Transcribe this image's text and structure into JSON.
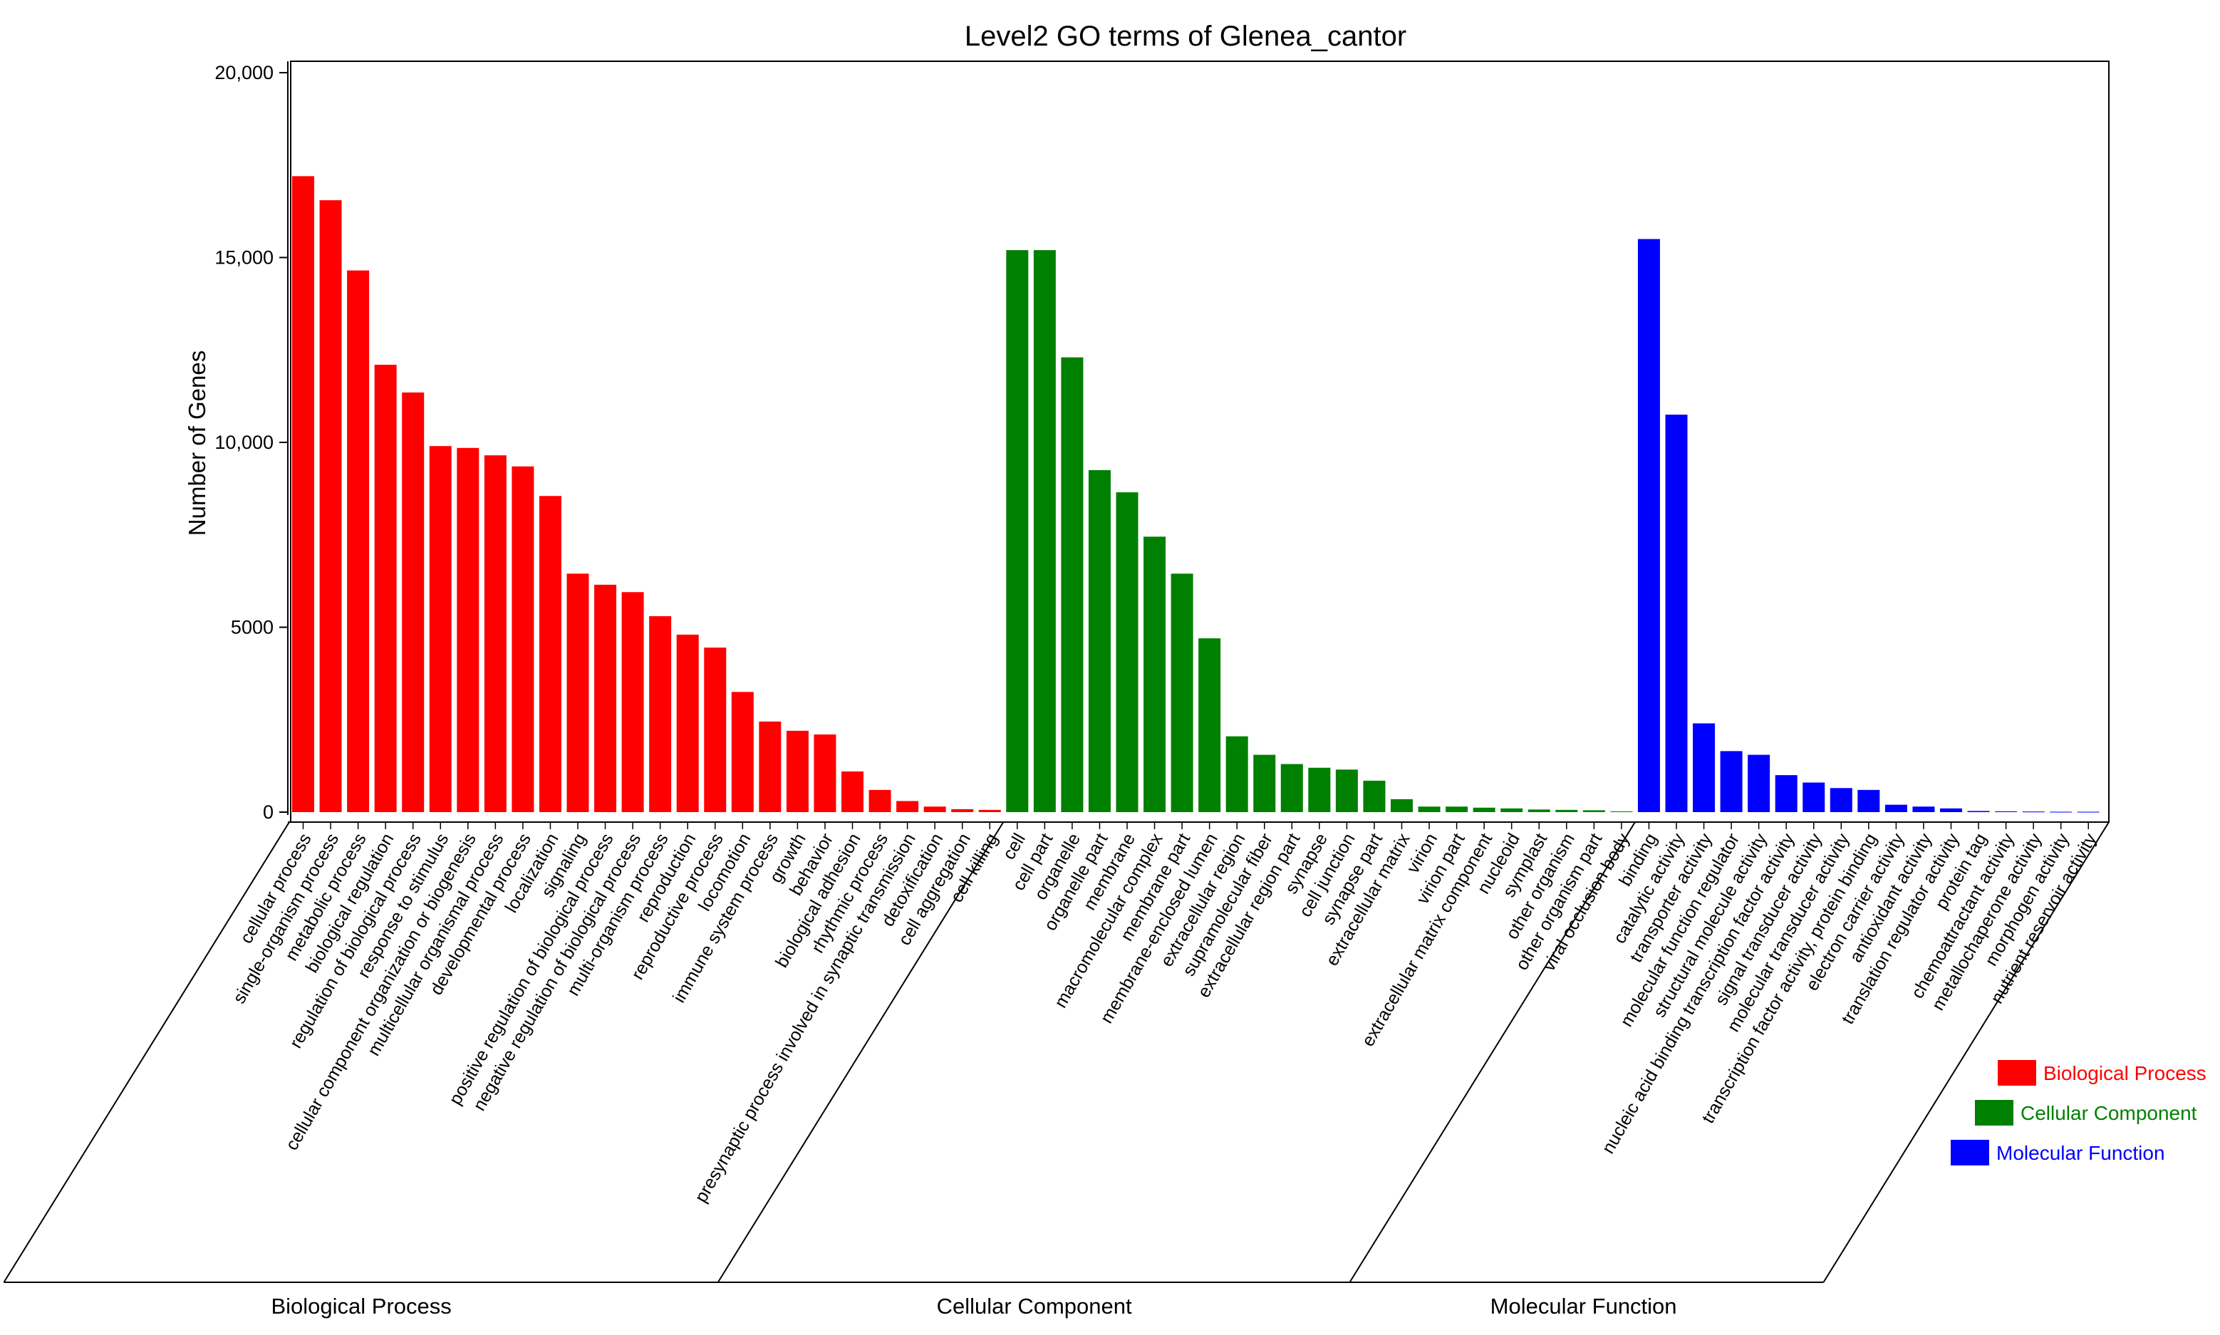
{
  "chart_data": {
    "type": "bar",
    "title": "Level2 GO terms of Glenea_cantor",
    "ylabel": "Number of Genes",
    "xlabel": "",
    "ylim": [
      0,
      20000
    ],
    "yticks": [
      0,
      5000,
      10000,
      15000,
      20000
    ],
    "ytick_labels": [
      "0",
      "5000",
      "10,000",
      "15,000",
      "20,000"
    ],
    "grid": false,
    "legend_position": "right",
    "groups": [
      {
        "name": "Biological Process",
        "color": "#ff0000",
        "categories": [
          "cellular process",
          "single-organism process",
          "metabolic process",
          "biological regulation",
          "regulation of biological process",
          "response to stimulus",
          "cellular component organization or biogenesis",
          "multicellular organismal process",
          "developmental process",
          "localization",
          "signaling",
          "positive regulation of biological process",
          "negative regulation of biological process",
          "multi-organism process",
          "reproduction",
          "reproductive process",
          "locomotion",
          "immune system process",
          "growth",
          "behavior",
          "biological adhesion",
          "rhythmic process",
          "presynaptic process involved in synaptic transmission",
          "detoxification",
          "cell aggregation",
          "cell killing"
        ],
        "values": [
          17200,
          16550,
          14650,
          12100,
          11350,
          9900,
          9850,
          9650,
          9350,
          8550,
          6450,
          6150,
          5950,
          5300,
          4800,
          4450,
          3250,
          2450,
          2200,
          2100,
          1100,
          600,
          300,
          150,
          80,
          60
        ]
      },
      {
        "name": "Cellular Component",
        "color": "#008000",
        "categories": [
          "cell",
          "cell part",
          "organelle",
          "organelle part",
          "membrane",
          "macromolecular complex",
          "membrane part",
          "membrane-enclosed lumen",
          "extracellular region",
          "supramolecular fiber",
          "extracellular region part",
          "synapse",
          "cell junction",
          "synapse part",
          "extracellular matrix",
          "virion",
          "virion part",
          "extracellular matrix component",
          "nucleoid",
          "symplast",
          "other organism",
          "other organism part",
          "viral occlusion body"
        ],
        "values": [
          15200,
          15200,
          12300,
          9250,
          8650,
          7450,
          6450,
          4700,
          2050,
          1550,
          1300,
          1200,
          1150,
          850,
          350,
          150,
          150,
          120,
          100,
          70,
          60,
          50,
          20
        ]
      },
      {
        "name": "Molecular Function",
        "color": "#0000ff",
        "categories": [
          "binding",
          "catalytic activity",
          "transporter activity",
          "molecular function regulator",
          "structural molecule activity",
          "nucleic acid binding transcription factor activity",
          "signal transducer activity",
          "molecular transducer activity",
          "transcription factor activity, protein binding",
          "electron carrier activity",
          "antioxidant activity",
          "translation regulator activity",
          "protein tag",
          "chemoattractant activity",
          "metallochaperone activity",
          "morphogen activity",
          "nutrient reservoir activity"
        ],
        "values": [
          15500,
          10750,
          2400,
          1650,
          1550,
          1000,
          800,
          650,
          600,
          200,
          150,
          100,
          30,
          20,
          15,
          10,
          10
        ]
      }
    ],
    "legend": [
      {
        "label": "Biological Process",
        "color": "#ff0000"
      },
      {
        "label": "Cellular Component",
        "color": "#008000"
      },
      {
        "label": "Molecular Function",
        "color": "#0000ff"
      }
    ]
  }
}
